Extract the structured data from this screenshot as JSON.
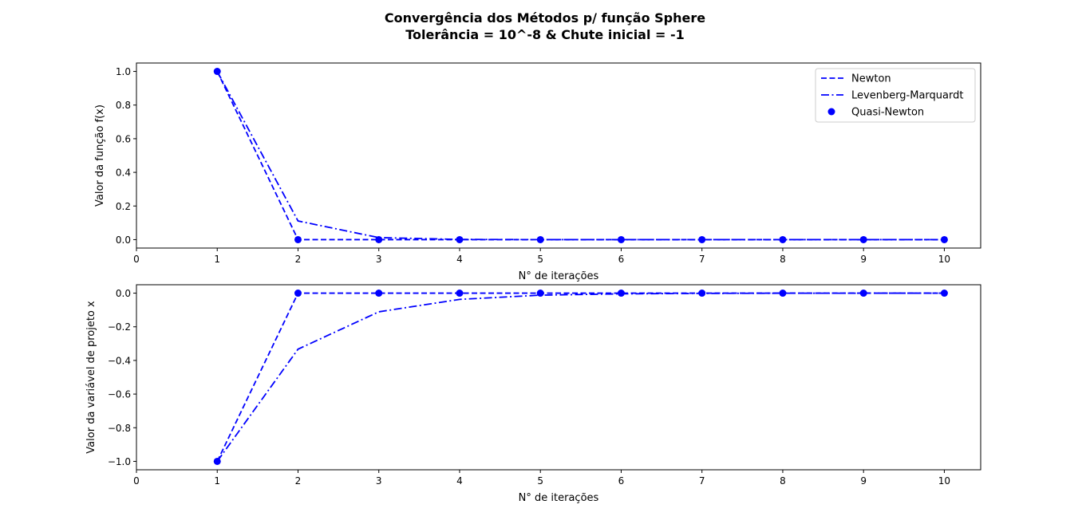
{
  "figure": {
    "title_line1": "Convergência dos Métodos p/ função Sphere",
    "title_line2": "Tolerância = 10^-8 & Chute inicial = -1"
  },
  "colors": {
    "series": "#0000ff",
    "axis": "#000000",
    "background": "#ffffff"
  },
  "chart_data": [
    {
      "type": "line",
      "xlabel": "N° de iterações",
      "ylabel": "Valor da função f(x)",
      "xlim": [
        0,
        10.45
      ],
      "ylim": [
        -0.05,
        1.05
      ],
      "xticks": [
        0,
        1,
        2,
        3,
        4,
        5,
        6,
        7,
        8,
        9,
        10
      ],
      "yticks": [
        "0.0",
        "0.2",
        "0.4",
        "0.6",
        "0.8",
        "1.0"
      ],
      "grid": false,
      "legend": {
        "placement": "top-right",
        "entries": [
          "Newton",
          "Levenberg-Marquardt",
          "Quasi-Newton"
        ]
      },
      "x": [
        1,
        2,
        3,
        4,
        5,
        6,
        7,
        8,
        9,
        10
      ],
      "series": [
        {
          "name": "Newton",
          "style": "dashed",
          "values": [
            1.0,
            0.0,
            0.0,
            0.0,
            0.0,
            0.0,
            0.0,
            0.0,
            0.0,
            0.0
          ]
        },
        {
          "name": "Levenberg-Marquardt",
          "style": "dashdot",
          "values": [
            1.0,
            0.111,
            0.012,
            0.0014,
            0.0002,
            0.0,
            0.0,
            0.0,
            0.0,
            0.0
          ]
        },
        {
          "name": "Quasi-Newton",
          "style": "markers",
          "values": [
            1.0,
            0.0,
            0.0,
            0.0,
            0.0,
            0.0,
            0.0,
            0.0,
            0.0,
            0.0
          ]
        }
      ]
    },
    {
      "type": "line",
      "xlabel": "N° de iterações",
      "ylabel": "Valor da variável de projeto x",
      "xlim": [
        0,
        10.45
      ],
      "ylim": [
        -1.05,
        0.05
      ],
      "xticks": [
        0,
        1,
        2,
        3,
        4,
        5,
        6,
        7,
        8,
        9,
        10
      ],
      "yticks": [
        "−1.0",
        "−0.8",
        "−0.6",
        "−0.4",
        "−0.2",
        "0.0"
      ],
      "grid": false,
      "x": [
        1,
        2,
        3,
        4,
        5,
        6,
        7,
        8,
        9,
        10
      ],
      "series": [
        {
          "name": "Newton",
          "style": "dashed",
          "values": [
            -1.0,
            0.0,
            0.0,
            0.0,
            0.0,
            0.0,
            0.0,
            0.0,
            0.0,
            0.0
          ]
        },
        {
          "name": "Levenberg-Marquardt",
          "style": "dashdot",
          "values": [
            -1.0,
            -0.333,
            -0.111,
            -0.037,
            -0.012,
            -0.004,
            -0.0014,
            -0.0005,
            -0.0002,
            0.0
          ]
        },
        {
          "name": "Quasi-Newton",
          "style": "markers",
          "values": [
            -1.0,
            0.0,
            0.0,
            0.0,
            0.0,
            0.0,
            0.0,
            0.0,
            0.0,
            0.0
          ]
        }
      ]
    }
  ]
}
